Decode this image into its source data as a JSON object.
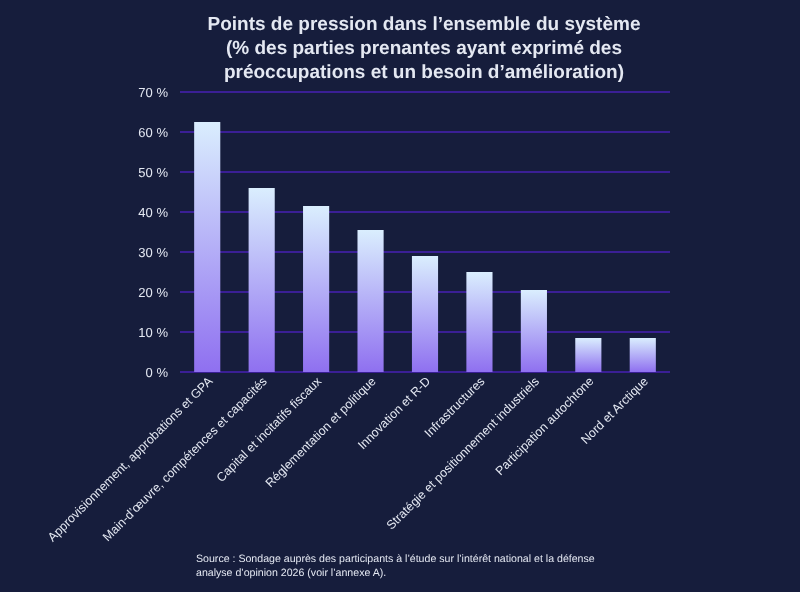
{
  "chart_data": {
    "type": "bar",
    "title": "Points de pression dans l’ensemble du système\n(% des parties prenantes ayant exprimé des\npréoccupations et un besoin d’amélioration)",
    "categories": [
      "Approvisionnement, approbations et GPA",
      "Main-d’œuvre, compétences et capacités",
      "Capital et incitatifs fiscaux",
      "Réglementation et politique",
      "Innovation et R-D",
      "Infrastructures",
      "Stratégie et positionnement industriels",
      "Participation autochtone",
      "Nord et Arctique"
    ],
    "values": [
      62.5,
      46,
      41.5,
      35.5,
      29,
      25,
      20.5,
      8.5,
      8.5
    ],
    "color": "#8f70f0",
    "ylim": [
      0,
      70
    ],
    "yticks": [
      {
        "value": 0,
        "label": "0 %"
      },
      {
        "value": 10,
        "label": "10 %"
      },
      {
        "value": 20,
        "label": "20 %"
      },
      {
        "value": 30,
        "label": "30 %"
      },
      {
        "value": 40,
        "label": "40 %"
      },
      {
        "value": 50,
        "label": "50 %"
      },
      {
        "value": 60,
        "label": "60 %"
      },
      {
        "value": 70,
        "label": "70 %"
      }
    ],
    "grid": "y",
    "annotations": [
      "Source : Sondage auprès des participants à l’étude sur l’intérêt national et la défense\nanalyse d’opinion 2026 (voir l’annexe A)."
    ]
  }
}
